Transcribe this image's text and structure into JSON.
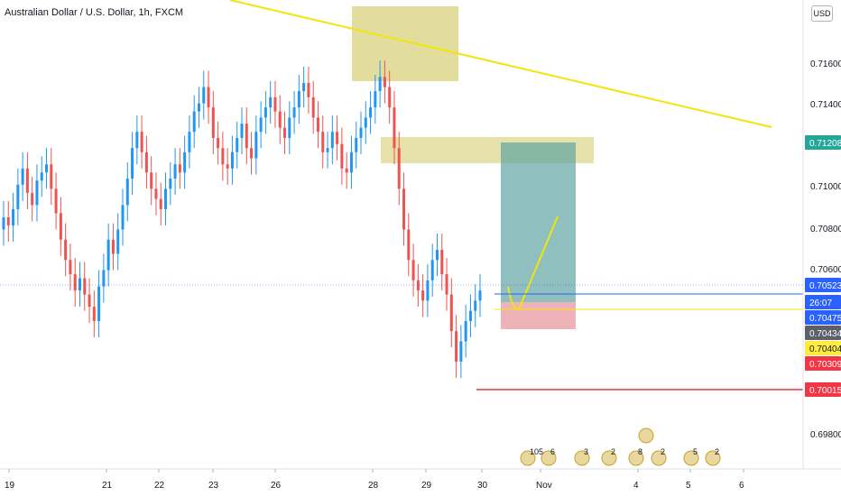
{
  "header": {
    "title": "Australian Dollar / U.S. Dollar, 1h, FXCM",
    "currency_label": "USD"
  },
  "colors": {
    "up_candle": "#2196f3",
    "down_candle": "#ef5350",
    "trendline": "#f2e40c",
    "zone": "#d4cb68",
    "target_zone": "#5fa5a4",
    "stop_zone": "#e8a0a6",
    "price_line_blue": "#2962ff",
    "stop_line_red": "#f23645",
    "badge_green": "#26a69a",
    "badge_blue": "#2962ff",
    "badge_gray": "#5d606b",
    "badge_yellow": "#ffeb3b",
    "badge_red": "#f23645"
  },
  "chart_data": {
    "type": "candlestick",
    "symbol": "AUDUSD",
    "timeframe": "1h",
    "source": "FXCM",
    "ylim": [
      0.697,
      0.718
    ],
    "price_axis": {
      "ticks": [
        "0.71600",
        "0.71400",
        "0.71000",
        "0.70800",
        "0.70600",
        "0.69800"
      ]
    },
    "time_axis": {
      "labels": [
        "19",
        "21",
        "22",
        "23",
        "26",
        "28",
        "29",
        "30",
        "Nov",
        "4",
        "5",
        "6"
      ]
    },
    "price_badges": [
      {
        "value": "0.71208",
        "kind": "green"
      },
      {
        "value": "0.70523",
        "kind": "blue"
      },
      {
        "value": "26:07",
        "kind": "countdown"
      },
      {
        "value": "0.70475",
        "kind": "blue"
      },
      {
        "value": "0.70434",
        "kind": "gray"
      },
      {
        "value": "0.70404",
        "kind": "yellow"
      },
      {
        "value": "0.70309",
        "kind": "red"
      },
      {
        "value": "0.70015",
        "kind": "red"
      }
    ],
    "price_path": [
      0.7086,
      0.7082,
      0.709,
      0.7102,
      0.711,
      0.7098,
      0.7092,
      0.7104,
      0.7108,
      0.7112,
      0.71,
      0.7088,
      0.7075,
      0.7065,
      0.7058,
      0.705,
      0.7056,
      0.7048,
      0.7042,
      0.7035,
      0.7052,
      0.706,
      0.7075,
      0.7068,
      0.708,
      0.7092,
      0.7105,
      0.712,
      0.7128,
      0.7118,
      0.7108,
      0.71,
      0.7095,
      0.709,
      0.71,
      0.7105,
      0.7112,
      0.7108,
      0.7118,
      0.7128,
      0.7138,
      0.7142,
      0.715,
      0.714,
      0.7125,
      0.712,
      0.7112,
      0.711,
      0.7118,
      0.7125,
      0.7132,
      0.712,
      0.7115,
      0.7128,
      0.7135,
      0.714,
      0.7145,
      0.7138,
      0.713,
      0.7125,
      0.7135,
      0.714,
      0.7148,
      0.7152,
      0.7145,
      0.7135,
      0.7128,
      0.7118,
      0.712,
      0.7128,
      0.7122,
      0.711,
      0.7108,
      0.7118,
      0.7125,
      0.713,
      0.7135,
      0.714,
      0.7148,
      0.7155,
      0.715,
      0.714,
      0.712,
      0.71,
      0.708,
      0.7065,
      0.7055,
      0.705,
      0.7045,
      0.7055,
      0.7065,
      0.707,
      0.7058,
      0.7048,
      0.703,
      0.7015,
      0.7025,
      0.7035,
      0.704,
      0.7045,
      0.705
    ],
    "levels": [
      {
        "value": 0.70523,
        "color": "blue"
      },
      {
        "value": 0.70475,
        "color": "yellow"
      },
      {
        "value": 0.70015,
        "color": "red"
      }
    ],
    "events_axis": [
      {
        "label": "105"
      },
      {
        "label": "6"
      },
      {
        "label": "3"
      },
      {
        "label": "2"
      },
      {
        "label": "8"
      },
      {
        "label": "2"
      },
      {
        "label": "5"
      },
      {
        "label": "2"
      }
    ]
  }
}
